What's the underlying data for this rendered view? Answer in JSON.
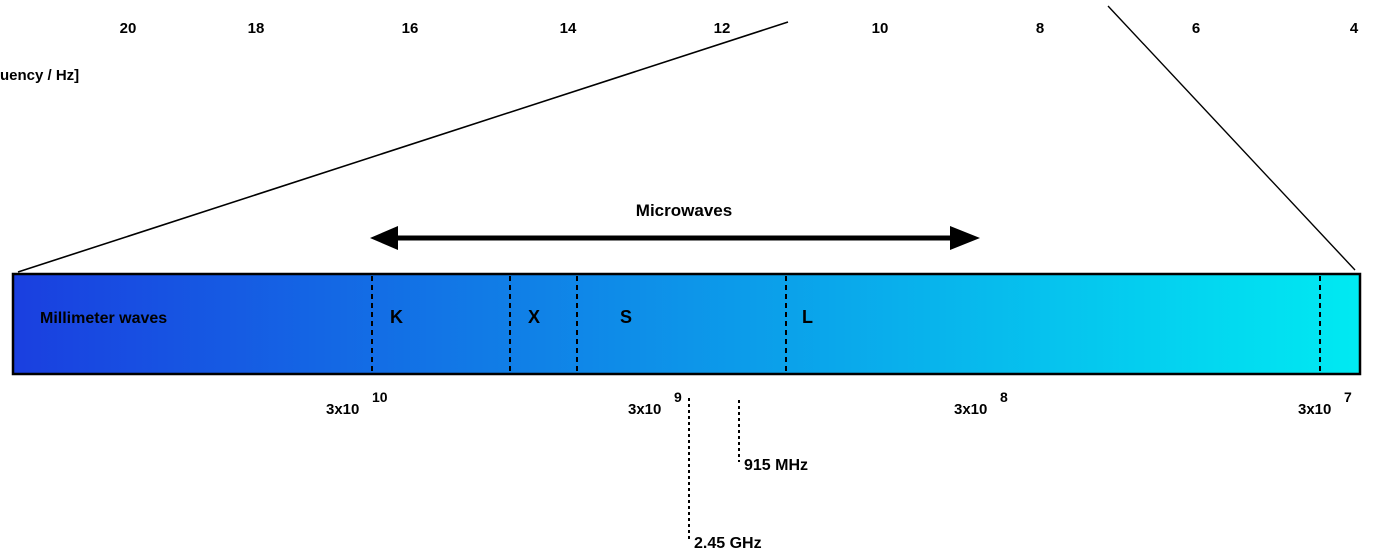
{
  "scale_top": {
    "numbers": [
      "20",
      "18",
      "16",
      "14",
      "12",
      "10",
      "8",
      "6",
      "4"
    ],
    "axis_label": "uency / Hz]"
  },
  "microwaves_label": "Microwaves",
  "spectrum_bar": {
    "gradient_start": "#1a3fe0",
    "gradient_end": "#00eaf2",
    "millimeter_label": "Millimeter waves",
    "bands": [
      "K",
      "X",
      "S",
      "L"
    ]
  },
  "frequency_ticks": [
    {
      "base": "3x10",
      "exp": "10"
    },
    {
      "base": "3x10",
      "exp": "9"
    },
    {
      "base": "3x10",
      "exp": "8"
    },
    {
      "base": "3x10",
      "exp": "7"
    }
  ],
  "annotations": {
    "f915": "915 MHz",
    "f245": "2.45 GHz"
  }
}
